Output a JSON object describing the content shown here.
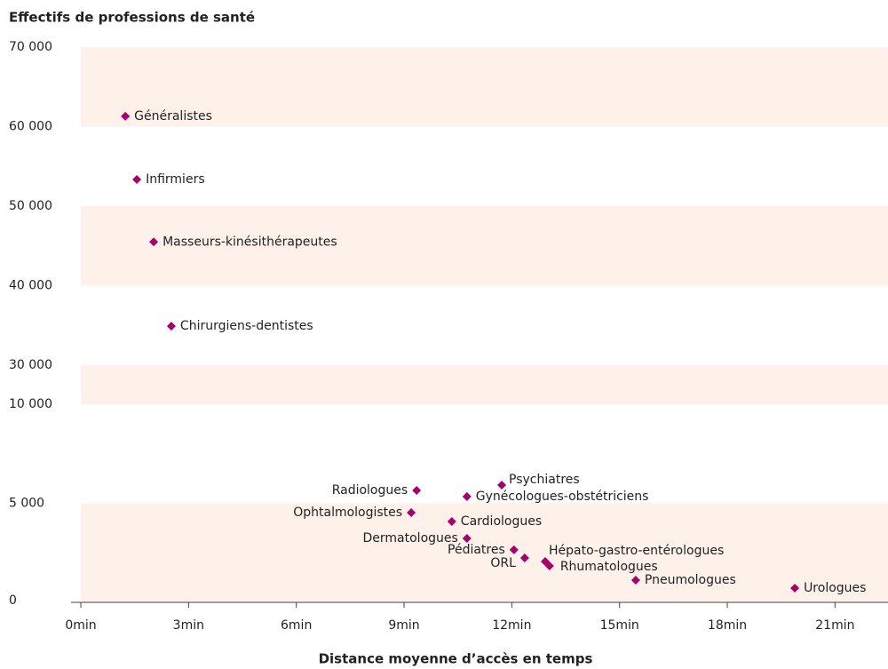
{
  "chart_data": [
    {
      "type": "scatter",
      "title": "Effectifs de professions de santé",
      "color": "#a8006b",
      "x": [
        1.24,
        1.56,
        2.03,
        2.52
      ],
      "values": [
        61300,
        53350,
        45500,
        34900
      ],
      "labels": [
        "Généralistes",
        "Infirmiers",
        "Masseurs-kinésithérapeutes",
        "Chirurgiens-dentistes"
      ],
      "xlim": [
        0,
        22.4
      ],
      "ylim": [
        30000,
        70000
      ],
      "yticks": [
        {
          "value": 30000,
          "label": "30 000"
        },
        {
          "value": 40000,
          "label": "40 000"
        },
        {
          "value": 50000,
          "label": "50 000"
        },
        {
          "value": 60000,
          "label": "60 000"
        },
        {
          "value": 70000,
          "label": "70 000"
        }
      ]
    },
    {
      "type": "scatter",
      "xlabel": "Distance moyenne d’accès en temps",
      "color": "#a8006b",
      "x": [
        9.35,
        11.72,
        10.75,
        9.2,
        10.33,
        10.75,
        12.06,
        12.36,
        12.93,
        13.05,
        15.45,
        19.88
      ],
      "values": [
        5650,
        5920,
        5340,
        4530,
        4080,
        3230,
        2650,
        2240,
        2060,
        1840,
        1120,
        720
      ],
      "labels": [
        "Radiologues",
        "Psychiatres",
        "Gynécologues-obstétriciens",
        "Ophtalmologistes",
        "Cardiologues",
        "Dermatologues",
        "Pédiatres",
        "ORL",
        "Hépato-gastro-entérologues",
        "Rhumatologues",
        "Pneumologues",
        "Urologues"
      ],
      "xlim": [
        0,
        22.4
      ],
      "ylim": [
        0,
        10000
      ],
      "yticks": [
        0,
        {
          "value": 5000,
          "label": "5 000"
        },
        {
          "value": 10000,
          "label": "10 000"
        }
      ],
      "xticks": [
        {
          "value": 0,
          "label": "0min"
        },
        {
          "value": 3,
          "label": "3min"
        },
        {
          "value": 6,
          "label": "6min"
        },
        {
          "value": 9,
          "label": "9min"
        },
        {
          "value": 12,
          "label": "12min"
        },
        {
          "value": 15,
          "label": "15min"
        },
        {
          "value": 18,
          "label": "18min"
        },
        {
          "value": 21,
          "label": "21min"
        }
      ]
    }
  ]
}
